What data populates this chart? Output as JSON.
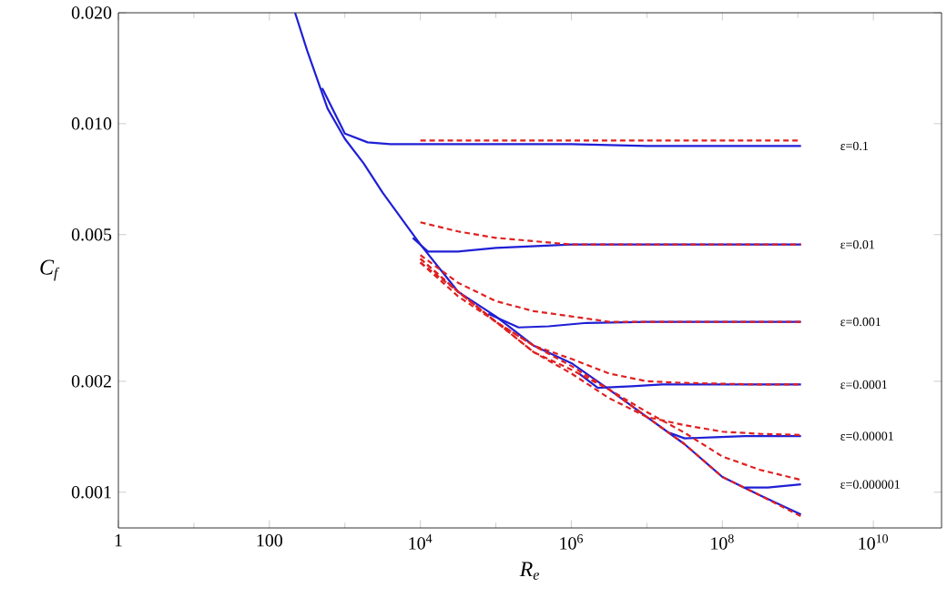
{
  "chart_data": {
    "type": "line",
    "xlabel": "R$_{e}$",
    "ylabel": "C$_{f}$",
    "log": "xy",
    "grid": false,
    "marker": "none",
    "xlim": [
      1,
      80000000000.0
    ],
    "ylim": [
      0.0008,
      0.02
    ],
    "xticks": [
      1,
      100,
      {
        "value": 10000,
        "label": "10$^{4}$"
      },
      {
        "value": 1000000.0,
        "label": "10$^{6}$"
      },
      {
        "value": 100000000.0,
        "label": "10$^{8}$"
      },
      {
        "value": 10000000000.0,
        "label": "10$^{10}$"
      }
    ],
    "yticks": [
      0.001,
      0.002,
      0.005,
      {
        "value": 0.01,
        "label": "0.010"
      },
      {
        "value": 0.02,
        "label": "0.020"
      }
    ],
    "series": [
      {
        "color": "#1f1fd6",
        "line_style": "solid",
        "x": [
          219,
          316,
          589,
          1000,
          1778,
          3162,
          10000,
          31623,
          100000.0,
          316000.0,
          1000000.0,
          3160000.0,
          10000000.0,
          31600000.0,
          100000000.0,
          316000000.0,
          1100000000.0
        ],
        "values": [
          0.02,
          0.0158,
          0.011,
          0.0091,
          0.0078,
          0.0065,
          0.0047,
          0.0035,
          0.003,
          0.0025,
          0.00224,
          0.0019,
          0.0016,
          0.00135,
          0.0011,
          0.00098,
          0.00087
        ]
      },
      {
        "name": "ε=0.1",
        "color": "#1f1fd6",
        "line_style": "solid",
        "x": [
          500,
          1000,
          2000,
          4000,
          10000,
          100000.0,
          1000000.0,
          10000000.0,
          100000000.0,
          1100000000.0
        ],
        "values": [
          0.0125,
          0.0094,
          0.0089,
          0.0088,
          0.0088,
          0.0088,
          0.0088,
          0.0087,
          0.0087,
          0.0087
        ]
      },
      {
        "name": "ε=0.01",
        "color": "#1f1fd6",
        "line_style": "solid",
        "x": [
          7943,
          12589,
          31623,
          100000.0,
          1000000.0,
          100000000.0,
          1100000000.0
        ],
        "values": [
          0.0049,
          0.0045,
          0.0045,
          0.0046,
          0.0047,
          0.0047,
          0.0047
        ]
      },
      {
        "name": "ε=0.001",
        "color": "#1f1fd6",
        "line_style": "solid",
        "x": [
          79433,
          200000.0,
          500000.0,
          1600000.0,
          10000000.0,
          100000000.0,
          1100000000.0
        ],
        "values": [
          0.00305,
          0.0028,
          0.00282,
          0.00288,
          0.0029,
          0.0029,
          0.0029
        ]
      },
      {
        "name": "ε=0.0001",
        "color": "#1f1fd6",
        "line_style": "solid",
        "x": [
          1260000.0,
          2240000.0,
          6300000.0,
          16000000.0,
          100000000.0,
          1100000000.0
        ],
        "values": [
          0.0021,
          0.00192,
          0.00194,
          0.00196,
          0.00196,
          0.00196
        ]
      },
      {
        "name": "ε=0.00001",
        "color": "#1f1fd6",
        "line_style": "solid",
        "x": [
          20000000.0,
          31600000.0,
          80000000.0,
          200000000.0,
          1100000000.0
        ],
        "values": [
          0.00145,
          0.0014,
          0.00141,
          0.00142,
          0.00142
        ]
      },
      {
        "name": "ε=0.000001",
        "color": "#1f1fd6",
        "line_style": "solid",
        "x": [
          200000000.0,
          400000000.0,
          1100000000.0
        ],
        "values": [
          0.00103,
          0.00103,
          0.00105
        ]
      },
      {
        "color": "#e02020",
        "line_style": "dashed",
        "x": [
          10000,
          100000.0,
          1000000.0,
          10000000.0,
          100000000.0,
          1100000000.0
        ],
        "values": [
          0.009,
          0.009,
          0.009,
          0.009,
          0.009,
          0.009
        ]
      },
      {
        "color": "#e02020",
        "line_style": "dashed",
        "x": [
          10000,
          31623,
          100000.0,
          316000.0,
          1000000.0,
          3160000.0,
          10000000.0,
          100000000.0,
          1100000000.0
        ],
        "values": [
          0.0054,
          0.0051,
          0.0049,
          0.0048,
          0.0047,
          0.0047,
          0.0047,
          0.0047,
          0.0047
        ]
      },
      {
        "color": "#e02020",
        "line_style": "dashed",
        "x": [
          10000,
          31623,
          100000.0,
          316000.0,
          1000000.0,
          3160000.0,
          10000000.0,
          100000000.0,
          1100000000.0
        ],
        "values": [
          0.0044,
          0.0037,
          0.0033,
          0.0031,
          0.003,
          0.0029,
          0.0029,
          0.0029,
          0.0029
        ]
      },
      {
        "color": "#e02020",
        "line_style": "dashed",
        "x": [
          10000,
          31623,
          100000.0,
          316000.0,
          1000000.0,
          3160000.0,
          10000000.0,
          31600000.0,
          100000000.0,
          316000000.0,
          1100000000.0
        ],
        "values": [
          0.0043,
          0.0035,
          0.0029,
          0.0025,
          0.0023,
          0.0021,
          0.002,
          0.00198,
          0.00197,
          0.00196,
          0.00196
        ]
      },
      {
        "color": "#e02020",
        "line_style": "dashed",
        "x": [
          10000,
          31623,
          100000.0,
          316000.0,
          1000000.0,
          3160000.0,
          10000000.0,
          31600000.0,
          100000000.0,
          316000000.0,
          1100000000.0
        ],
        "values": [
          0.0043,
          0.0035,
          0.0029,
          0.0024,
          0.0021,
          0.0018,
          0.0016,
          0.00152,
          0.00146,
          0.00144,
          0.00143
        ]
      },
      {
        "color": "#e02020",
        "line_style": "dashed",
        "x": [
          10000,
          31623,
          100000.0,
          316000.0,
          1000000.0,
          3160000.0,
          10000000.0,
          31600000.0,
          100000000.0,
          316000000.0,
          1100000000.0
        ],
        "values": [
          0.0042,
          0.0035,
          0.0029,
          0.0024,
          0.00215,
          0.0019,
          0.00165,
          0.00145,
          0.00125,
          0.00115,
          0.00108
        ]
      },
      {
        "color": "#e02020",
        "line_style": "dashed",
        "x": [
          10000,
          31623,
          100000.0,
          316000.0,
          1000000.0,
          3160000.0,
          10000000.0,
          31600000.0,
          100000000.0,
          316000000.0,
          1100000000.0
        ],
        "values": [
          0.0042,
          0.0034,
          0.0029,
          0.0025,
          0.0022,
          0.0019,
          0.0016,
          0.00135,
          0.0011,
          0.00098,
          0.00086
        ]
      }
    ]
  }
}
